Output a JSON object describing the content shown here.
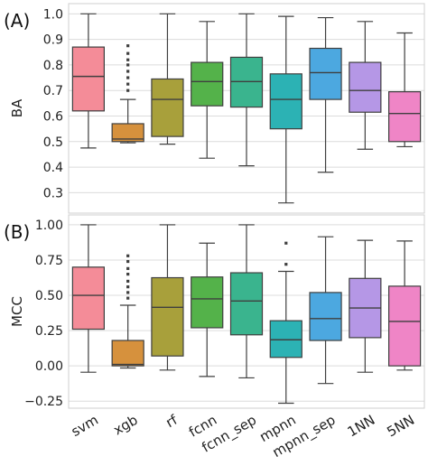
{
  "chart_data": [
    {
      "type": "box",
      "panel_label": "(A)",
      "ylabel": "BA",
      "ylim": [
        0.22,
        1.04
      ],
      "yticks": [
        0.3,
        0.4,
        0.5,
        0.6,
        0.7,
        0.8,
        0.9,
        1.0
      ],
      "ytick_labels": [
        "0.3",
        "0.4",
        "0.5",
        "0.6",
        "0.7",
        "0.8",
        "0.9",
        "1.0"
      ],
      "grid": "horizontal",
      "categories": [
        "svm",
        "xgb",
        "rf",
        "fcnn",
        "fcnn_sep",
        "mpnn",
        "mpnn_sep",
        "1NN",
        "5NN"
      ],
      "colors": [
        "#f48c98",
        "#d6913d",
        "#a8a03b",
        "#54b24a",
        "#3ab48e",
        "#2cb2b4",
        "#4ca8e0",
        "#b597e6",
        "#ef85c6"
      ],
      "boxes": [
        {
          "whislo": 0.475,
          "q1": 0.62,
          "med": 0.755,
          "q3": 0.87,
          "whishi": 1.0,
          "fliers": []
        },
        {
          "whislo": 0.495,
          "q1": 0.5,
          "med": 0.51,
          "q3": 0.57,
          "whishi": 0.665,
          "fliers": [
            0.7,
            0.725,
            0.75,
            0.775,
            0.8,
            0.82,
            0.845,
            0.875
          ]
        },
        {
          "whislo": 0.49,
          "q1": 0.52,
          "med": 0.665,
          "q3": 0.745,
          "whishi": 1.0,
          "fliers": []
        },
        {
          "whislo": 0.435,
          "q1": 0.64,
          "med": 0.735,
          "q3": 0.81,
          "whishi": 0.97,
          "fliers": []
        },
        {
          "whislo": 0.405,
          "q1": 0.635,
          "med": 0.735,
          "q3": 0.83,
          "whishi": 1.0,
          "fliers": []
        },
        {
          "whislo": 0.26,
          "q1": 0.55,
          "med": 0.665,
          "q3": 0.765,
          "whishi": 0.99,
          "fliers": []
        },
        {
          "whislo": 0.38,
          "q1": 0.665,
          "med": 0.77,
          "q3": 0.865,
          "whishi": 0.985,
          "fliers": []
        },
        {
          "whislo": 0.47,
          "q1": 0.615,
          "med": 0.7,
          "q3": 0.81,
          "whishi": 0.97,
          "fliers": []
        },
        {
          "whislo": 0.48,
          "q1": 0.5,
          "med": 0.61,
          "q3": 0.695,
          "whishi": 0.925,
          "fliers": []
        }
      ]
    },
    {
      "type": "box",
      "panel_label": "(B)",
      "ylabel": "MCC",
      "ylim": [
        -0.3,
        1.07
      ],
      "yticks": [
        -0.25,
        0.0,
        0.25,
        0.5,
        0.75,
        1.0
      ],
      "ytick_labels": [
        "−0.25",
        "0.00",
        "0.25",
        "0.50",
        "0.75",
        "1.00"
      ],
      "grid": "horizontal",
      "categories": [
        "svm",
        "xgb",
        "rf",
        "fcnn",
        "fcnn_sep",
        "mpnn",
        "mpnn_sep",
        "1NN",
        "5NN"
      ],
      "colors": [
        "#f48c98",
        "#d6913d",
        "#a8a03b",
        "#54b24a",
        "#3ab48e",
        "#2cb2b4",
        "#4ca8e0",
        "#b597e6",
        "#ef85c6"
      ],
      "boxes": [
        {
          "whislo": -0.045,
          "q1": 0.26,
          "med": 0.5,
          "q3": 0.7,
          "whishi": 1.0,
          "fliers": []
        },
        {
          "whislo": -0.015,
          "q1": 0.0,
          "med": 0.01,
          "q3": 0.18,
          "whishi": 0.43,
          "fliers": [
            0.48,
            0.52,
            0.56,
            0.6,
            0.65,
            0.69,
            0.74,
            0.78
          ]
        },
        {
          "whislo": -0.03,
          "q1": 0.07,
          "med": 0.415,
          "q3": 0.625,
          "whishi": 1.0,
          "fliers": []
        },
        {
          "whislo": -0.075,
          "q1": 0.27,
          "med": 0.475,
          "q3": 0.63,
          "whishi": 0.87,
          "fliers": []
        },
        {
          "whislo": -0.085,
          "q1": 0.22,
          "med": 0.46,
          "q3": 0.66,
          "whishi": 1.0,
          "fliers": []
        },
        {
          "whislo": -0.265,
          "q1": 0.06,
          "med": 0.185,
          "q3": 0.32,
          "whishi": 0.67,
          "fliers": [
            0.72,
            0.87
          ]
        },
        {
          "whislo": -0.125,
          "q1": 0.18,
          "med": 0.335,
          "q3": 0.52,
          "whishi": 0.915,
          "fliers": []
        },
        {
          "whislo": -0.045,
          "q1": 0.2,
          "med": 0.41,
          "q3": 0.62,
          "whishi": 0.89,
          "fliers": []
        },
        {
          "whislo": -0.03,
          "q1": 0.0,
          "med": 0.315,
          "q3": 0.565,
          "whishi": 0.885,
          "fliers": []
        }
      ]
    }
  ]
}
